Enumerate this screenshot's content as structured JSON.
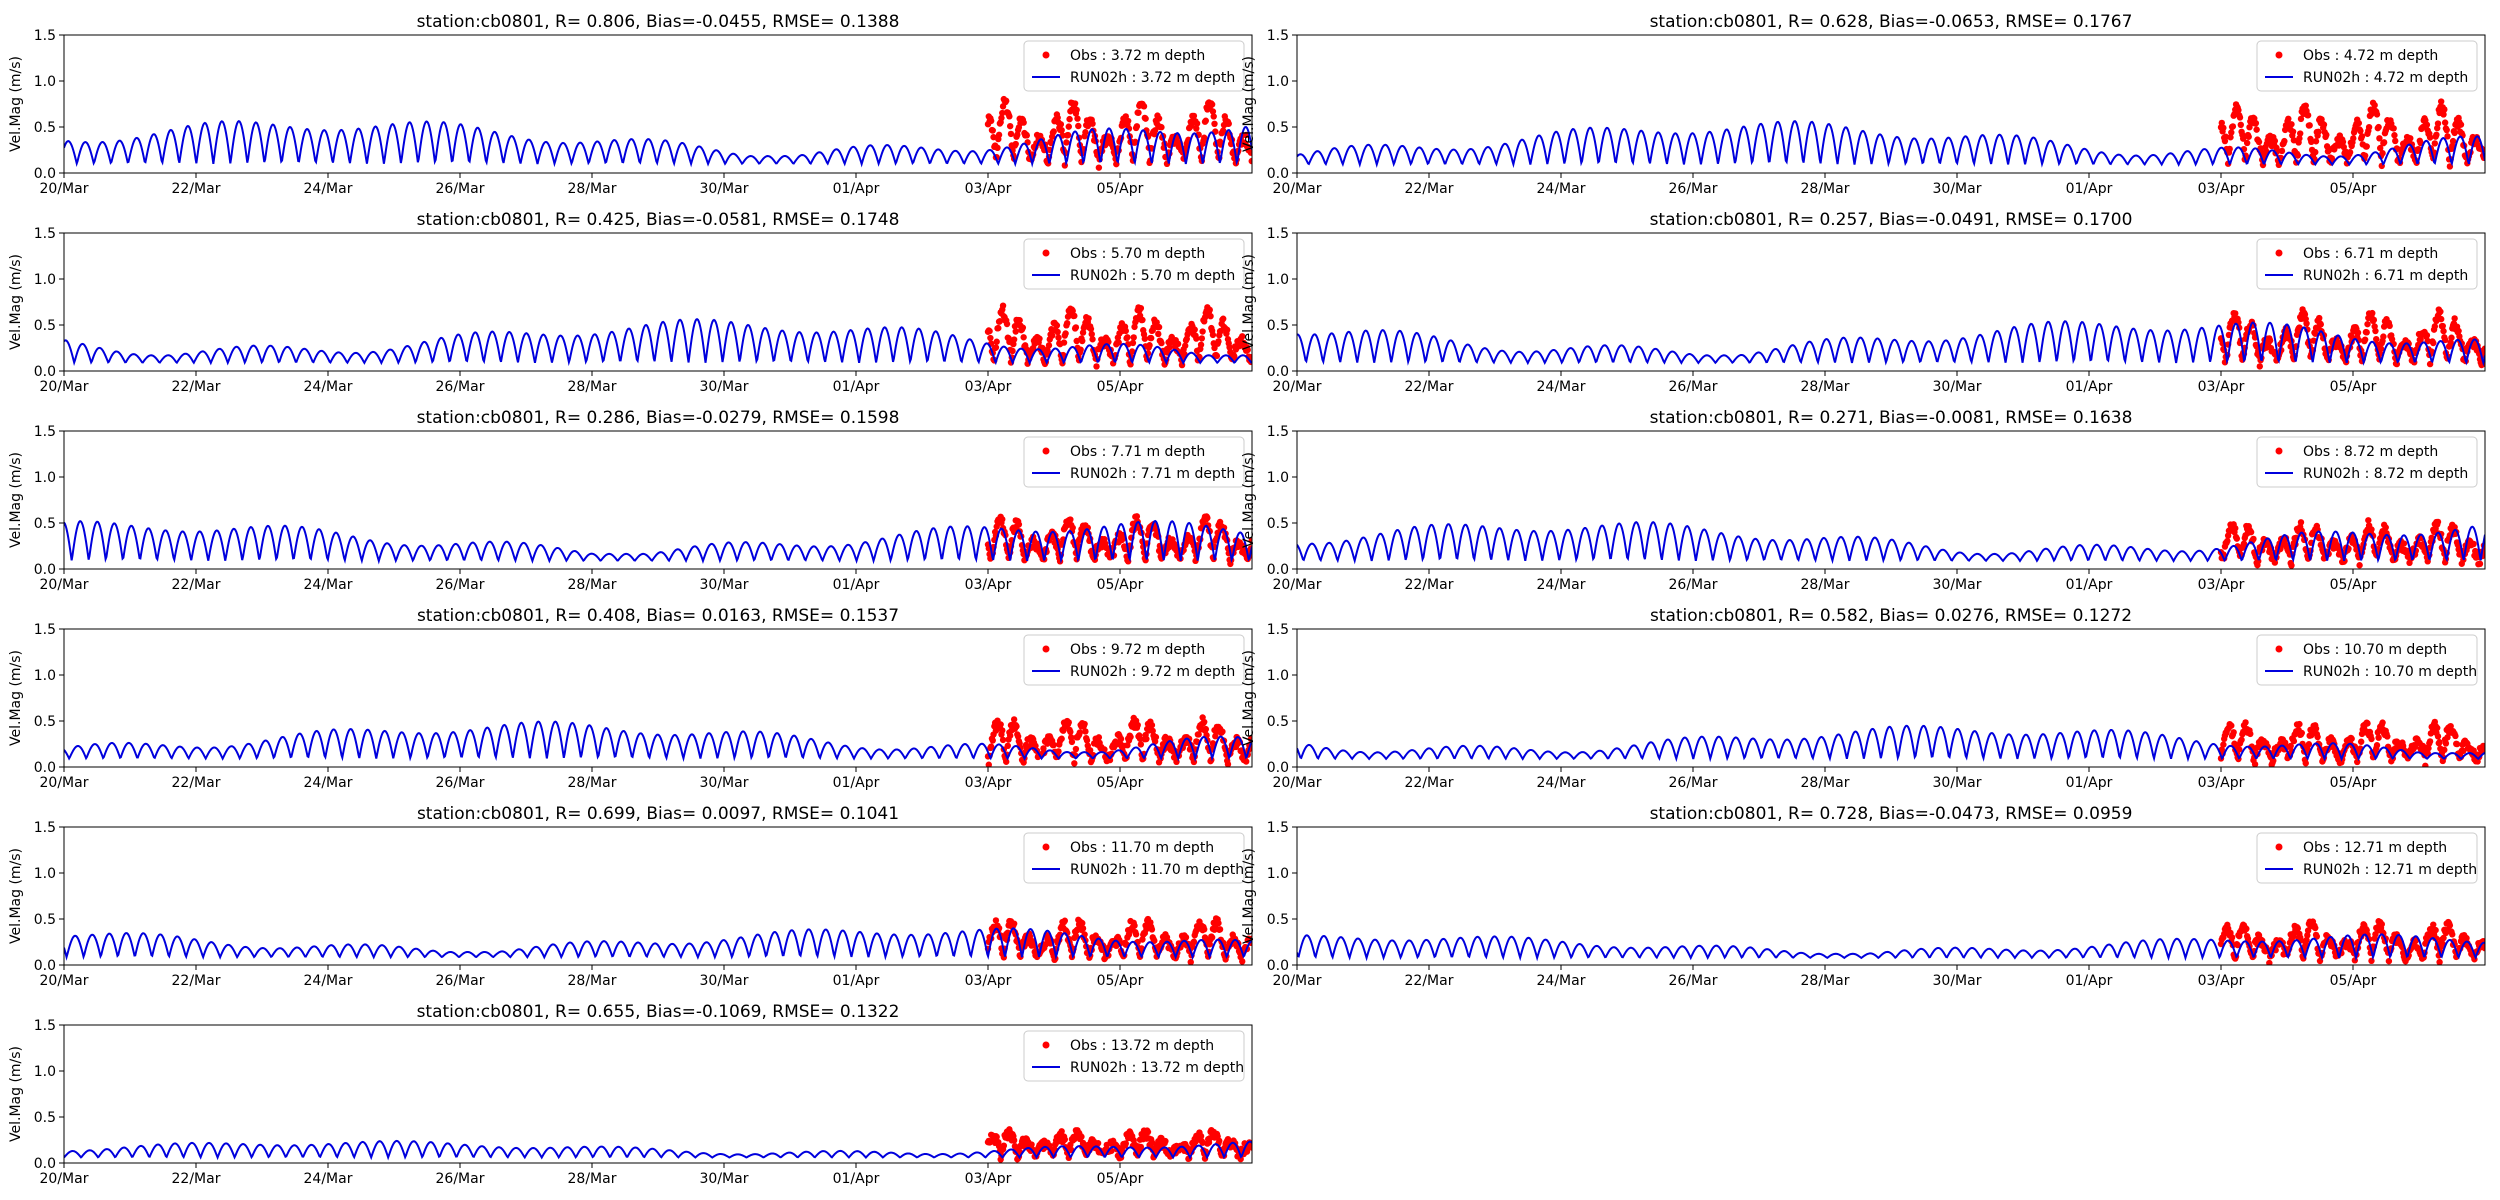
{
  "chart_data": {
    "type": "line",
    "layout": "7 rows x 2 columns, last row single panel",
    "ylabel": "Vel.Mag (m/s)",
    "ylim": [
      0,
      1.5
    ],
    "yticks": [
      "0.0",
      "0.5",
      "1.0",
      "1.5"
    ],
    "xlim": [
      "2022-03-20",
      "2022-04-07"
    ],
    "xticks": [
      {
        "date": "2022-03-20",
        "label": "20/Mar"
      },
      {
        "date": "2022-03-22",
        "label": "22/Mar"
      },
      {
        "date": "2022-03-24",
        "label": "24/Mar"
      },
      {
        "date": "2022-03-26",
        "label": "26/Mar"
      },
      {
        "date": "2022-03-28",
        "label": "28/Mar"
      },
      {
        "date": "2022-03-30",
        "label": "30/Mar"
      },
      {
        "date": "2022-04-01",
        "label": "01/Apr"
      },
      {
        "date": "2022-04-03",
        "label": "03/Apr"
      },
      {
        "date": "2022-04-05",
        "label": "05/Apr"
      }
    ],
    "legend_position": "top-right",
    "obs_color": "#ff0000",
    "model_color": "#0000dd",
    "obs_start": "2022-04-03",
    "panels": [
      {
        "title": "station:cb0801, R= 0.806, Bias=-0.0455, RMSE= 0.1388",
        "obs_label": "Obs : 3.72 m depth",
        "model_label": "RUN02h : 3.72 m depth",
        "model_mean": 0.28,
        "model_amp": 0.27,
        "obs_mean": 0.38,
        "obs_amp": 0.42
      },
      {
        "title": "station:cb0801, R= 0.628, Bias=-0.0653, RMSE= 0.1767",
        "obs_label": "Obs : 4.72 m depth",
        "model_label": "RUN02h : 4.72 m depth",
        "model_mean": 0.26,
        "model_amp": 0.26,
        "obs_mean": 0.36,
        "obs_amp": 0.4
      },
      {
        "title": "station:cb0801, R= 0.425, Bias=-0.0581, RMSE= 0.1748",
        "obs_label": "Obs : 5.70 m depth",
        "model_label": "RUN02h : 5.70 m depth",
        "model_mean": 0.25,
        "model_amp": 0.26,
        "obs_mean": 0.32,
        "obs_amp": 0.37
      },
      {
        "title": "station:cb0801, R= 0.257, Bias=-0.0491, RMSE= 0.1700",
        "obs_label": "Obs : 6.71 m depth",
        "model_label": "RUN02h : 6.71 m depth",
        "model_mean": 0.25,
        "model_amp": 0.26,
        "obs_mean": 0.32,
        "obs_amp": 0.34
      },
      {
        "title": "station:cb0801, R= 0.286, Bias=-0.0279, RMSE= 0.1598",
        "obs_label": "Obs : 7.71 m depth",
        "model_label": "RUN02h : 7.71 m depth",
        "model_mean": 0.25,
        "model_amp": 0.24,
        "obs_mean": 0.3,
        "obs_amp": 0.3
      },
      {
        "title": "station:cb0801, R= 0.271, Bias=-0.0081, RMSE= 0.1638",
        "obs_label": "Obs : 8.72 m depth",
        "model_label": "RUN02h : 8.72 m depth",
        "model_mean": 0.25,
        "model_amp": 0.24,
        "obs_mean": 0.28,
        "obs_amp": 0.26
      },
      {
        "title": "station:cb0801, R= 0.408, Bias= 0.0163, RMSE= 0.1537",
        "obs_label": "Obs : 9.72 m depth",
        "model_label": "RUN02h : 9.72 m depth",
        "model_mean": 0.26,
        "model_amp": 0.22,
        "obs_mean": 0.24,
        "obs_amp": 0.28
      },
      {
        "title": "station:cb0801, R= 0.582, Bias= 0.0276, RMSE= 0.1272",
        "obs_label": "Obs : 10.70 m depth",
        "model_label": "RUN02h : 10.70 m depth",
        "model_mean": 0.25,
        "model_amp": 0.2,
        "obs_mean": 0.22,
        "obs_amp": 0.26
      },
      {
        "title": "station:cb0801, R= 0.699, Bias= 0.0097, RMSE= 0.1041",
        "obs_label": "Obs : 11.70 m depth",
        "model_label": "RUN02h : 11.70 m depth",
        "model_mean": 0.24,
        "model_amp": 0.18,
        "obs_mean": 0.26,
        "obs_amp": 0.26
      },
      {
        "title": "station:cb0801, R= 0.728, Bias=-0.0473, RMSE= 0.0959",
        "obs_label": "Obs : 12.71 m depth",
        "model_label": "RUN02h : 12.71 m depth",
        "model_mean": 0.22,
        "model_amp": 0.14,
        "obs_mean": 0.25,
        "obs_amp": 0.24
      },
      {
        "title": "station:cb0801, R= 0.655, Bias=-0.1069, RMSE= 0.1322",
        "obs_label": "Obs : 13.72 m depth",
        "model_label": "RUN02h : 13.72 m depth",
        "model_mean": 0.17,
        "model_amp": 0.1,
        "obs_mean": 0.27,
        "obs_amp": 0.16
      }
    ]
  }
}
